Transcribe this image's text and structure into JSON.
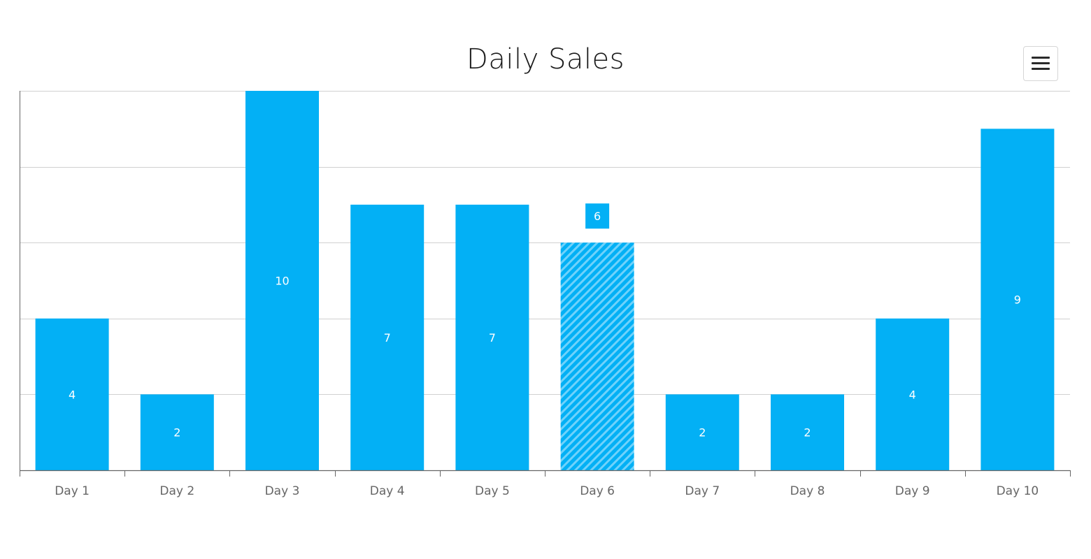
{
  "chart_data": {
    "type": "bar",
    "title": "Daily Sales",
    "categories": [
      "Day 1",
      "Day 2",
      "Day 3",
      "Day 4",
      "Day 5",
      "Day 6",
      "Day 7",
      "Day 8",
      "Day 9",
      "Day 10"
    ],
    "values": [
      4,
      2,
      10,
      7,
      7,
      6,
      2,
      2,
      4,
      9
    ],
    "ylim": [
      0,
      10
    ],
    "grid": true,
    "highlighted_category": "Day 6",
    "bar_color": "#03b0f5",
    "highlight_stripe_color": "#6fd2fb"
  },
  "toolbar": {
    "menu_icon": "hamburger-icon"
  }
}
